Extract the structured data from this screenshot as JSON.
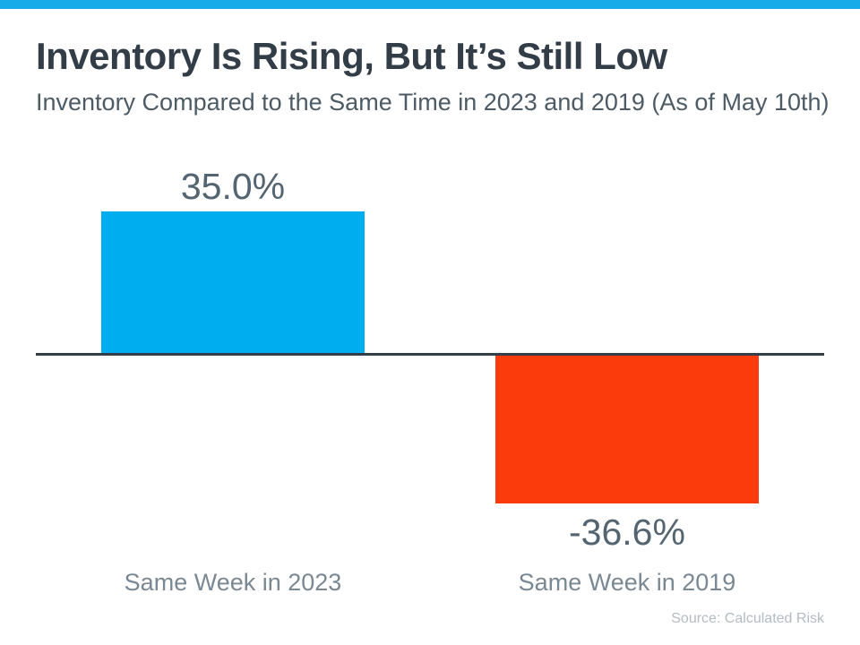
{
  "header": {
    "accent_bar_color": "#18ABEA",
    "title": "Inventory Is Rising, But It’s Still Low",
    "subtitle": "Inventory Compared to the Same Time in 2023 and 2019 (As of May 10th)"
  },
  "chart_data": {
    "type": "bar",
    "title": "Inventory Is Rising, But It’s Still Low",
    "subtitle": "Inventory Compared to the Same Time in 2023 and 2019 (As of May 10th)",
    "categories": [
      "Same Week in 2023",
      "Same Week in 2019"
    ],
    "values": [
      35.0,
      -36.6
    ],
    "value_labels": [
      "35.0%",
      "-36.6%"
    ],
    "colors": [
      "#00AEEF",
      "#FB3B0C"
    ],
    "xlabel": "",
    "ylabel": "",
    "ylim": [
      -40,
      40
    ],
    "grid": false,
    "legend": "none",
    "baseline_color": "#333E48"
  },
  "footer": {
    "source": "Source: Calculated Risk"
  }
}
